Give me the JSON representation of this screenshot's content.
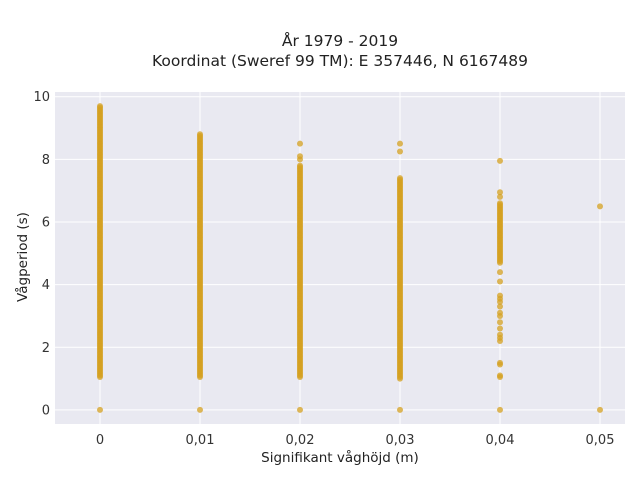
{
  "chart_data": {
    "type": "scatter",
    "title": "År 1979 - 2019",
    "subtitle": "Koordinat (Sweref 99 TM): E 357446, N 6167489",
    "xlabel": "Signifikant våghöjd (m)",
    "ylabel": "Vågperiod (s)",
    "xlim": [
      -0.0045,
      0.0525
    ],
    "ylim": [
      -0.45,
      10.15
    ],
    "x_ticks": [
      0,
      0.01,
      0.02,
      0.03,
      0.04,
      0.05
    ],
    "x_tick_labels": [
      "0",
      "0,01",
      "0,02",
      "0,03",
      "0,04",
      "0,05"
    ],
    "y_ticks": [
      0,
      2,
      4,
      6,
      8,
      10
    ],
    "y_tick_labels": [
      "0",
      "2",
      "4",
      "6",
      "8",
      "10"
    ],
    "grid": true,
    "marker_color": "#D4A020",
    "background_color": "#E9E9F1",
    "series": [
      {
        "columns": [
          {
            "x": 0,
            "y_min": 1.05,
            "y_max": 9.7,
            "outliers": [
              0
            ]
          },
          {
            "x": 0.01,
            "y_min": 1.05,
            "y_max": 8.8,
            "outliers": [
              0
            ]
          },
          {
            "x": 0.02,
            "y_min": 1.05,
            "y_max": 7.8,
            "outliers": [
              0,
              8.0,
              8.1,
              8.5
            ]
          },
          {
            "x": 0.03,
            "y_min": 1.0,
            "y_max": 7.4,
            "outliers": [
              0,
              8.25,
              8.5
            ]
          },
          {
            "x": 0.04,
            "y_min": 4.7,
            "y_max": 6.6,
            "outliers": [
              0,
              1.05,
              1.1,
              1.45,
              1.5,
              2.2,
              2.3,
              2.4,
              2.6,
              2.8,
              3.0,
              3.1,
              3.3,
              3.45,
              3.55,
              3.65,
              4.1,
              4.4,
              6.8,
              6.95,
              7.95
            ]
          },
          {
            "x": 0.05,
            "y_min": null,
            "y_max": null,
            "outliers": [
              0,
              6.5
            ]
          }
        ]
      }
    ]
  }
}
